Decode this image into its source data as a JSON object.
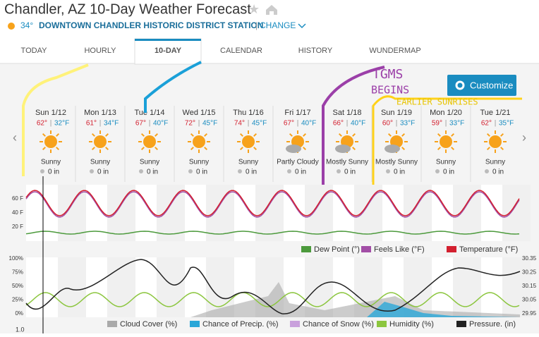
{
  "header": {
    "title": "Chandler, AZ 10-Day Weather Forecast",
    "temperature": "34°",
    "station": "DOWNTOWN CHANDLER HISTORIC DISTRICT STATION",
    "change": "CHANGE"
  },
  "tabs": [
    {
      "label": "TODAY"
    },
    {
      "label": "HOURLY"
    },
    {
      "label": "10-DAY",
      "active": true
    },
    {
      "label": "CALENDAR"
    },
    {
      "label": "HISTORY"
    },
    {
      "label": "WUNDERMAP"
    }
  ],
  "customize": "Customize",
  "separator": "|",
  "days": [
    {
      "day": "Sun 1/12",
      "high": "62°",
      "low": "32°F",
      "condition": "Sunny",
      "precip": "0 in"
    },
    {
      "day": "Mon 1/13",
      "high": "61°",
      "low": "34°F",
      "condition": "Sunny",
      "precip": "0 in"
    },
    {
      "day": "Tue 1/14",
      "high": "67°",
      "low": "40°F",
      "condition": "Sunny",
      "precip": "0 in"
    },
    {
      "day": "Wed 1/15",
      "high": "72°",
      "low": "45°F",
      "condition": "Sunny",
      "precip": "0 in"
    },
    {
      "day": "Thu 1/16",
      "high": "74°",
      "low": "45°F",
      "condition": "Sunny",
      "precip": "0 in"
    },
    {
      "day": "Fri 1/17",
      "high": "67°",
      "low": "40°F",
      "condition": "Partly Cloudy",
      "precip": "0 in"
    },
    {
      "day": "Sat 1/18",
      "high": "66°",
      "low": "40°F",
      "condition": "Mostly Sunny",
      "precip": "0 in"
    },
    {
      "day": "Sun 1/19",
      "high": "60°",
      "low": "33°F",
      "condition": "Mostly Sunny",
      "precip": "0 in"
    },
    {
      "day": "Mon 1/20",
      "high": "59°",
      "low": "33°F",
      "condition": "Sunny",
      "precip": "0 in"
    },
    {
      "day": "Tue 1/21",
      "high": "62°",
      "low": "35°F",
      "condition": "Sunny",
      "precip": "0 in"
    }
  ],
  "temp_chart": {
    "yticks": [
      "60 F",
      "40 F",
      "20 F"
    ],
    "legend": [
      {
        "name": "Dew Point (°)",
        "color": "#4c9a3c"
      },
      {
        "name": "Feels Like (°F)",
        "color": "#a24ea6"
      },
      {
        "name": "Temperature (°F)",
        "color": "#d3202f"
      }
    ]
  },
  "conditions_chart": {
    "left_ticks": [
      "100%",
      "75%",
      "50%",
      "25%",
      "0%"
    ],
    "right_ticks": [
      "30.35",
      "30.25",
      "30.15",
      "30.05",
      "29.95"
    ],
    "legend": [
      {
        "name": "Cloud Cover (%)",
        "color": "#aaaaaa"
      },
      {
        "name": "Chance of Precip. (%)",
        "color": "#2aa7d8"
      },
      {
        "name": "Chance of Snow (%)",
        "color": "#c9a0dc"
      },
      {
        "name": "Humidity (%)",
        "color": "#8cc63f"
      },
      {
        "name": "Pressure. (in)",
        "color": "#222222"
      }
    ]
  },
  "bottom_tick": "1.0",
  "annotations": {
    "line1": "TGMS",
    "line2": "BEGINS",
    "line3": "EARLIER SUNRISES"
  }
}
